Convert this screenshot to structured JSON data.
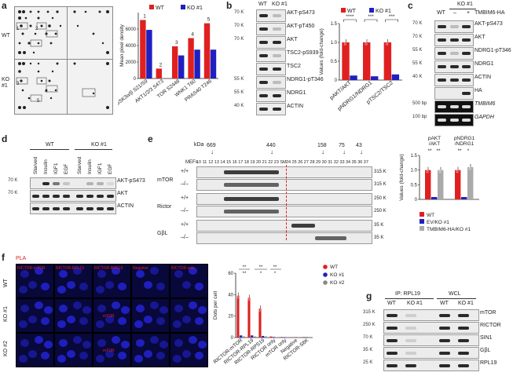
{
  "panels": {
    "a": {
      "label": "a",
      "row_labels": [
        "WT",
        "KO\n#1"
      ],
      "spot_numbers": [
        "1",
        "2",
        "3",
        "4",
        "5"
      ],
      "chart_data": {
        "type": "bar",
        "ylabel": "Mean pixel density",
        "ylim": [
          0,
          8000
        ],
        "yticks": [
          0,
          2000,
          4000,
          6000
        ],
        "categories": [
          "GSK3α/β S21/S9",
          "AKT1/2/3 S473",
          "TOR S2448",
          "WNK1 T60",
          "PRAS40 T246"
        ],
        "bar_numbers": [
          "1",
          "2",
          "3",
          "4",
          "5"
        ],
        "series": [
          {
            "name": "WT",
            "color": "#e02020",
            "values": [
              7100,
              1200,
              3900,
              4900,
              6700
            ]
          },
          {
            "name": "KO #1",
            "color": "#2020c0",
            "values": [
              5900,
              0,
              2800,
              3500,
              3500
            ]
          }
        ]
      }
    },
    "b": {
      "label": "b",
      "lanes": [
        "WT",
        "KO #1"
      ],
      "mw": [
        "70 K",
        "70 K",
        "70 K",
        "",
        "",
        "55 K",
        "55 K",
        "40 K"
      ],
      "rows": [
        "AKT-pS473",
        "AKT-pT450",
        "AKT",
        "TSC2-pS939",
        "TSC2",
        "NDRG1-pT346",
        "NDRG1",
        "ACTIN"
      ],
      "chart_data": {
        "type": "bar",
        "ylabel": "Values (fold-change)",
        "ylim": [
          0,
          1.5
        ],
        "yticks": [
          "0",
          "0.5",
          "1.0",
          "1.5"
        ],
        "categories": [
          "pAKT/AKT",
          "pNDRG1/NDRG1",
          "pTSC2/TSC2"
        ],
        "significance": [
          "****",
          "***",
          "***"
        ],
        "series": [
          {
            "name": "WT",
            "color": "#e02020",
            "values": [
              1.0,
              1.0,
              1.0
            ]
          },
          {
            "name": "KO #1",
            "color": "#2020c0",
            "values": [
              0.12,
              0.1,
              0.15
            ]
          }
        ]
      }
    },
    "c": {
      "label": "c",
      "header": "KO #1",
      "lanes": [
        "WT",
        "–",
        "+"
      ],
      "construct": "TMBIM6-HA",
      "mw": [
        "70 K",
        "70 K",
        "55 K",
        "55 K",
        "40 K",
        "",
        "500 bp",
        "100 bp"
      ],
      "rows": [
        "AKT-pS473",
        "AKT",
        "NDRG1-pT346",
        "NDRG1",
        "ACTIN",
        "HA",
        "TMBIM6",
        "GAPDH"
      ]
    },
    "d": {
      "label": "d",
      "groups": [
        "WT",
        "KO #1"
      ],
      "lanes": [
        "Starved",
        "Insulin",
        "IGF1",
        "EGF",
        "Starved",
        "Insulin",
        "IGF1",
        "EGF"
      ],
      "mw": [
        "70 K",
        "70 K"
      ],
      "rows": [
        "AKT-pS473",
        "AKT",
        "ACTIN"
      ]
    },
    "e": {
      "label": "e",
      "kda_label": "kDa",
      "markers": [
        "669",
        "440",
        "158",
        "75",
        "43"
      ],
      "fraction_header": "MEFs",
      "fractions": [
        "10",
        "11",
        "12",
        "13",
        "14",
        "15",
        "16",
        "17",
        "18",
        "19",
        "20",
        "21",
        "22",
        "23",
        "SM",
        "24",
        "25",
        "26",
        "27",
        "28",
        "29",
        "30",
        "31",
        "32",
        "33",
        "34",
        "35",
        "36",
        "37"
      ],
      "groups": [
        "mTOR",
        "Rictor",
        "GβL"
      ],
      "genotypes": [
        "+/+",
        "–/–",
        "+/+",
        "–/–",
        "+/+",
        "–/–"
      ],
      "mw": [
        "315 K",
        "315 K",
        "250 K",
        "250 K",
        "35 K",
        "35 K"
      ],
      "chart_data": {
        "type": "bar",
        "ylabel": "Values (fold-change)",
        "ylim": [
          0,
          1.5
        ],
        "yticks": [
          "0",
          "0.5",
          "1.0",
          "1.5"
        ],
        "categories": [
          "pAKT\n/AKT",
          "pNDRG1\n/NDRG1"
        ],
        "significance": [
          "**",
          "**",
          "**",
          "*"
        ],
        "series": [
          {
            "name": "WT",
            "color": "#e02020",
            "values": [
              1.0,
              1.0
            ]
          },
          {
            "name": "EV/KO #1",
            "color": "#2020c0",
            "values": [
              0.08,
              0.08
            ]
          },
          {
            "name": "TMBIM6-HA/KO #1",
            "color": "#aaaaaa",
            "values": [
              1.0,
              1.1
            ]
          }
        ]
      }
    },
    "f": {
      "label": "f",
      "pla": "PLA",
      "row_labels": [
        "WT",
        "KO #1",
        "KO #2"
      ],
      "col_labels": [
        "RICTOR-mTOR",
        "RICTOR-RPL19",
        "RICTOR-RPS19",
        "Negative",
        "RICTOR only"
      ],
      "insets": [
        "mTOR",
        "mTOR"
      ],
      "chart_data": {
        "type": "bar",
        "ylabel": "Dots per cell",
        "ylim": [
          0,
          60
        ],
        "yticks": [
          "0",
          "20",
          "40",
          "60"
        ],
        "categories": [
          "RICTOR-mTOR",
          "RICTOR-RPL19",
          "RICTOR-RPS19",
          "RICTOR only",
          "mTOR only",
          "Negative",
          "RICTOR-S6K"
        ],
        "significance": [
          "**",
          "**",
          "**",
          "**",
          "*",
          "*"
        ],
        "series": [
          {
            "name": "WT",
            "color": "#e02020",
            "values": [
              39,
              37,
              27,
              1,
              0.5,
              0.3,
              0.5
            ]
          },
          {
            "name": "KO #1",
            "color": "#2020c0",
            "values": [
              2,
              2,
              1.5,
              0.5,
              0.3,
              0.2,
              0.3
            ]
          },
          {
            "name": "KO #2",
            "color": "#888888",
            "values": [
              1,
              1,
              1,
              0.3,
              0.2,
              0.2,
              0.2
            ]
          }
        ]
      }
    },
    "g": {
      "label": "g",
      "ip": "IP: RPL19",
      "wcl": "WCL",
      "lanes": [
        "WT",
        "KO #1",
        "WT",
        "KO #1"
      ],
      "mw": [
        "315 K",
        "250 K",
        "70 K",
        "35 K",
        "25 K"
      ],
      "rows": [
        "mTOR",
        "RICTOR",
        "SIN1",
        "GβL",
        "RPL19"
      ]
    }
  }
}
